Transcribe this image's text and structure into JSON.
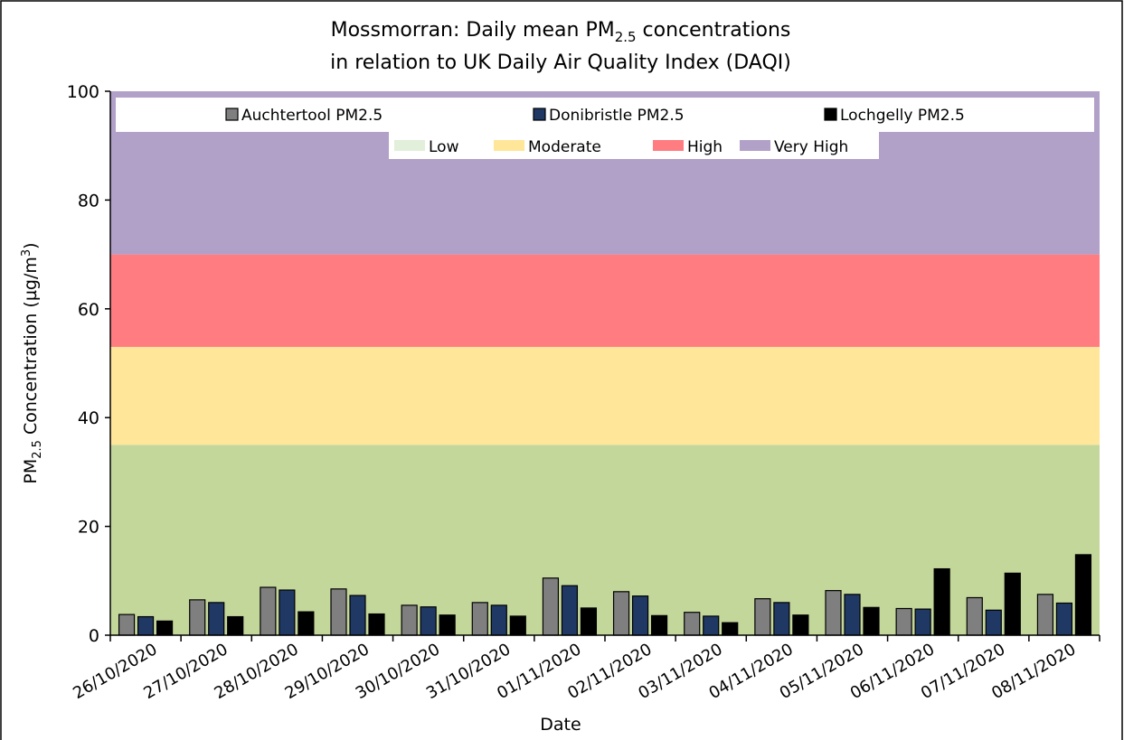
{
  "chart_data": {
    "type": "bar",
    "title": [
      [
        "Mossmorran: Daily mean PM",
        "2.5",
        " concentrations"
      ],
      [
        "in relation to UK Daily Air Quality Index (DAQI)"
      ]
    ],
    "ylabel": [
      "PM",
      "2.5",
      " Concentration (µg/m",
      "3",
      ")"
    ],
    "xlabel": "Date",
    "categories": [
      "26/10/2020",
      "27/10/2020",
      "28/10/2020",
      "29/10/2020",
      "30/10/2020",
      "31/10/2020",
      "01/11/2020",
      "02/11/2020",
      "03/11/2020",
      "04/11/2020",
      "05/11/2020",
      "06/11/2020",
      "07/11/2020",
      "08/11/2020"
    ],
    "series": [
      {
        "name": "Auchtertool PM2.5",
        "color": "#7f7f7f",
        "values": [
          3.8,
          6.5,
          8.8,
          8.5,
          5.5,
          6.0,
          10.5,
          8.0,
          4.2,
          6.7,
          8.2,
          4.9,
          6.9,
          7.5
        ]
      },
      {
        "name": "Donibristle PM2.5",
        "color": "#1f3864",
        "values": [
          3.4,
          6.0,
          8.3,
          7.3,
          5.2,
          5.5,
          9.1,
          7.2,
          3.5,
          6.0,
          7.5,
          4.8,
          4.6,
          5.9
        ]
      },
      {
        "name": "Lochgelly PM2.5",
        "color": "#000000",
        "values": [
          2.6,
          3.4,
          4.3,
          3.9,
          3.7,
          3.5,
          5.0,
          3.6,
          2.3,
          3.7,
          5.1,
          12.2,
          11.4,
          14.8
        ]
      }
    ],
    "bands": [
      {
        "name": "Low",
        "from": 0,
        "to": 35,
        "color": "#c4d79b",
        "legend_color": "#e2efda"
      },
      {
        "name": "Moderate",
        "from": 35,
        "to": 53,
        "color": "#ffe699",
        "legend_color": "#ffe699"
      },
      {
        "name": "High",
        "from": 53,
        "to": 70,
        "color": "#ff7c80",
        "legend_color": "#ff7c80"
      },
      {
        "name": "Very High",
        "from": 70,
        "to": 100,
        "color": "#b1a0c7",
        "legend_color": "#b1a0c7"
      }
    ],
    "ylim": [
      0,
      100
    ],
    "yticks": [
      0,
      20,
      40,
      60,
      80,
      100
    ],
    "legend": "top"
  }
}
